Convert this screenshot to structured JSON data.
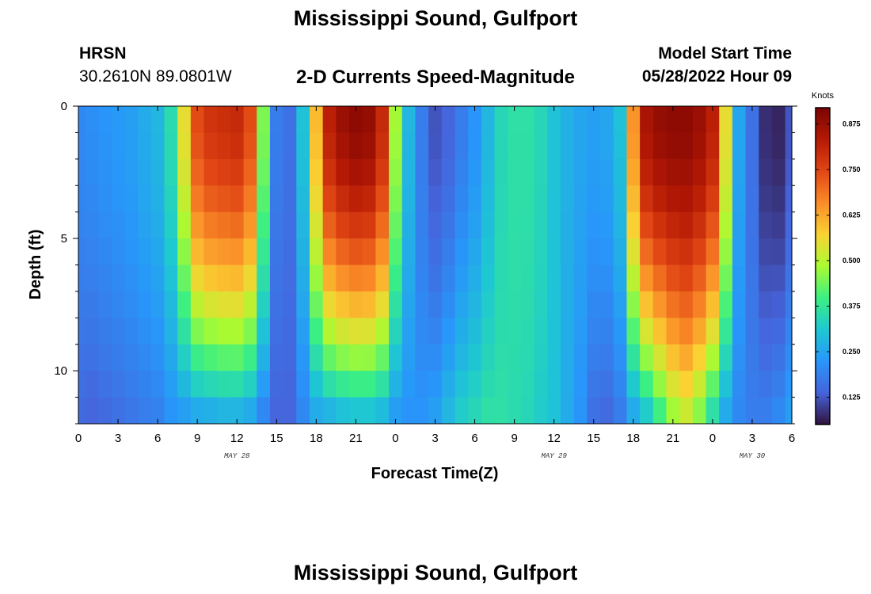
{
  "header": {
    "title": "Mississippi Sound, Gulfport",
    "station": "HRSN",
    "coords": "30.2610N  89.0801W",
    "subtitle": "2-D Currents Speed-Magnitude",
    "model_start_label": "Model Start Time",
    "model_start_value": "05/28/2022 Hour 09",
    "repeat_title": "Mississippi Sound, Gulfport"
  },
  "chart_data": {
    "type": "heatmap",
    "xlabel": "Forecast Time(Z)",
    "ylabel": "Depth (ft)",
    "x_tick_labels": [
      "0",
      "3",
      "6",
      "9",
      "12",
      "15",
      "18",
      "21",
      "0",
      "3",
      "6",
      "9",
      "12",
      "15",
      "18",
      "21",
      "0",
      "3",
      "6"
    ],
    "date_labels": [
      {
        "label": "MAY 28",
        "tick_index": 4
      },
      {
        "label": "MAY 29",
        "tick_index": 12
      },
      {
        "label": "MAY 30",
        "tick_index": 17
      }
    ],
    "x_range_hours": [
      0,
      54
    ],
    "y_tick_labels": [
      "0",
      "5",
      "10"
    ],
    "y_tick_values": [
      0,
      5,
      10
    ],
    "ylim": [
      0,
      12
    ],
    "colorbar": {
      "unit": "Knots",
      "ticks": [
        0.125,
        0.25,
        0.375,
        0.5,
        0.625,
        0.75,
        0.875
      ],
      "tick_labels": [
        "0.125",
        "0.250",
        "0.375",
        "0.500",
        "0.625",
        "0.750",
        "0.875"
      ],
      "min": 0.05,
      "max": 0.92,
      "colormap": "turbo"
    },
    "layers_depth_ft": [
      0.5,
      1.5,
      2.5,
      3.5,
      4.5,
      5.5,
      6.5,
      7.5,
      8.5,
      9.5,
      10.5,
      11.5
    ],
    "profile_hours": [
      0,
      1,
      2,
      3,
      4,
      5,
      6,
      7,
      8,
      9,
      10,
      11,
      12,
      13,
      14,
      15,
      16,
      17,
      18,
      19,
      20,
      21,
      22,
      23,
      24,
      25,
      26,
      27,
      28,
      29,
      30,
      31,
      32,
      33,
      34,
      35,
      36,
      37,
      38,
      39,
      40,
      41,
      42,
      43,
      44,
      45,
      46,
      47,
      48,
      49,
      50,
      51,
      52,
      53,
      54
    ],
    "surface_speed_knots": [
      0.2,
      0.21,
      0.22,
      0.23,
      0.24,
      0.26,
      0.28,
      0.35,
      0.55,
      0.74,
      0.78,
      0.79,
      0.8,
      0.74,
      0.45,
      0.18,
      0.16,
      0.3,
      0.6,
      0.82,
      0.87,
      0.89,
      0.88,
      0.8,
      0.48,
      0.28,
      0.18,
      0.12,
      0.14,
      0.18,
      0.22,
      0.28,
      0.34,
      0.36,
      0.36,
      0.34,
      0.3,
      0.27,
      0.25,
      0.24,
      0.25,
      0.3,
      0.65,
      0.85,
      0.88,
      0.89,
      0.89,
      0.87,
      0.82,
      0.55,
      0.25,
      0.16,
      0.08,
      0.07,
      0.12
    ],
    "bottom_speed_knots": [
      0.15,
      0.14,
      0.15,
      0.16,
      0.17,
      0.18,
      0.19,
      0.22,
      0.24,
      0.26,
      0.27,
      0.28,
      0.28,
      0.26,
      0.2,
      0.14,
      0.14,
      0.2,
      0.26,
      0.28,
      0.3,
      0.31,
      0.31,
      0.29,
      0.24,
      0.22,
      0.22,
      0.24,
      0.28,
      0.32,
      0.34,
      0.36,
      0.36,
      0.35,
      0.34,
      0.32,
      0.3,
      0.26,
      0.22,
      0.16,
      0.15,
      0.18,
      0.26,
      0.32,
      0.4,
      0.48,
      0.52,
      0.46,
      0.36,
      0.26,
      0.2,
      0.18,
      0.18,
      0.2,
      0.24
    ]
  }
}
